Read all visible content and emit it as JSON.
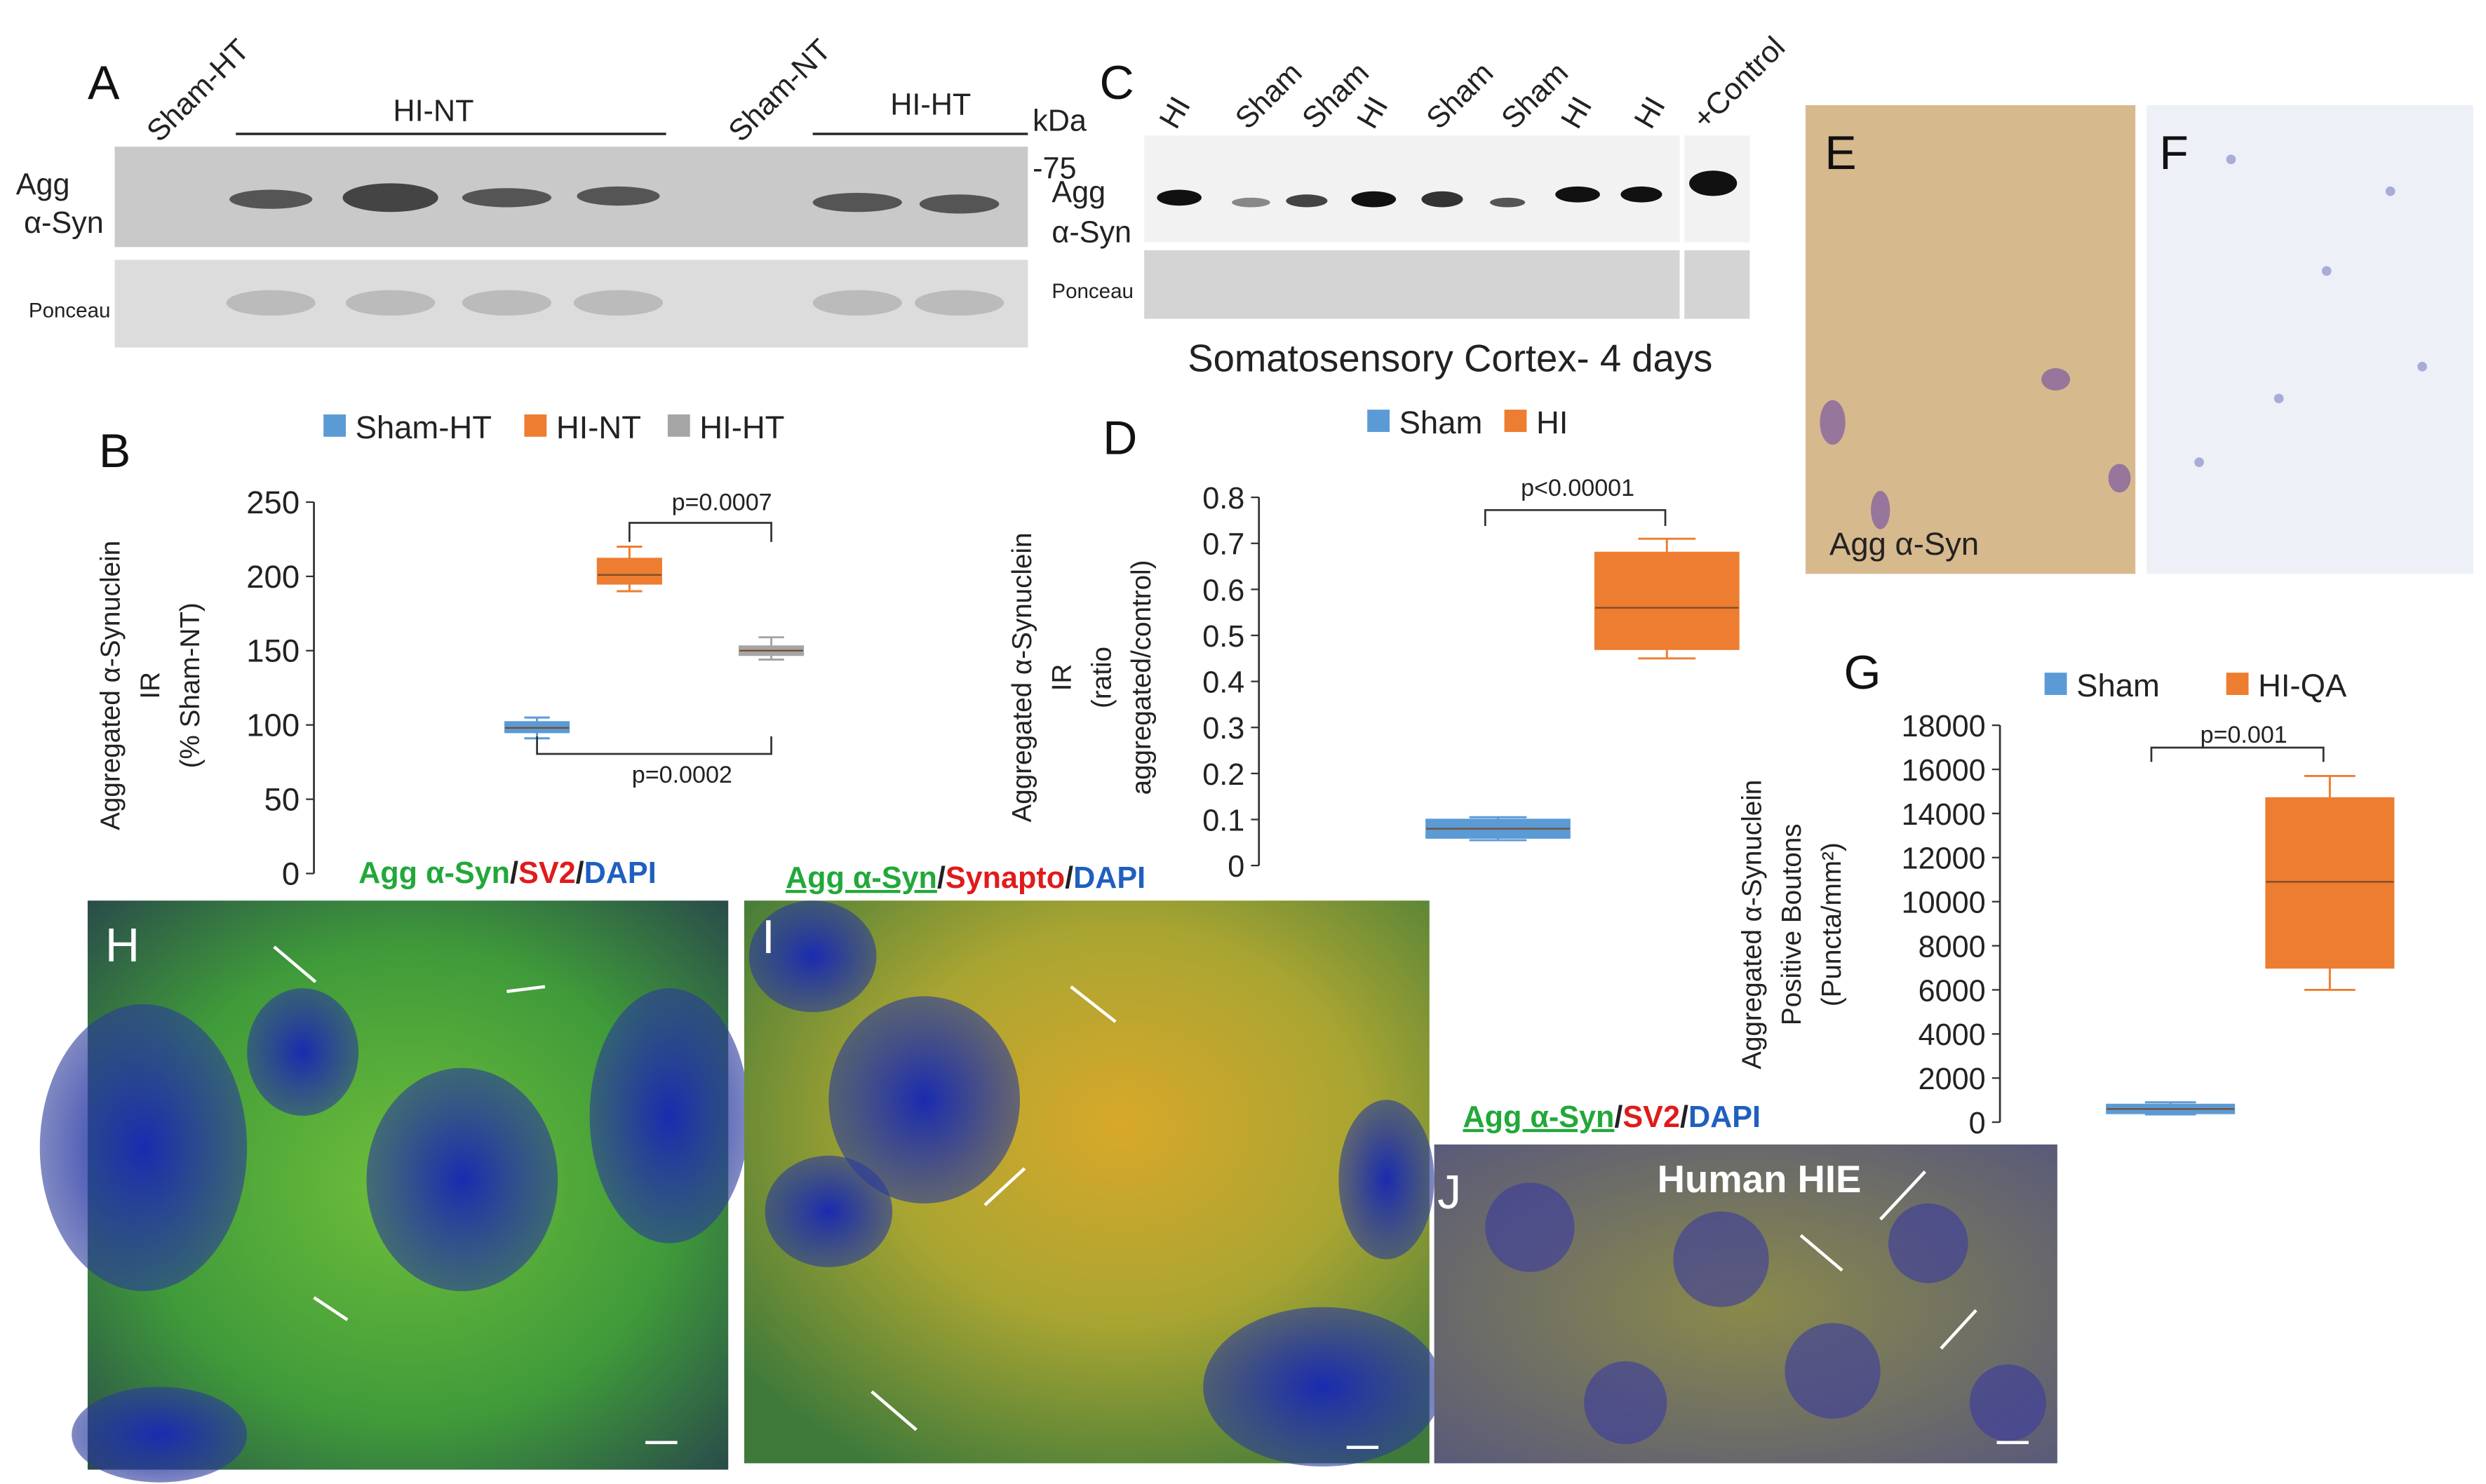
{
  "panel_letters": [
    "A",
    "B",
    "C",
    "D",
    "E",
    "F",
    "G",
    "H",
    "I",
    "J"
  ],
  "blot_a": {
    "lanes": [
      "Sham-HT",
      "Sham-NT"
    ],
    "groups": [
      "HI-NT",
      "HI-HT"
    ],
    "kda": "kDa",
    "marker": "-75",
    "row_label": [
      "Agg",
      "α-Syn"
    ],
    "loading": "Ponceau"
  },
  "blot_c": {
    "lanes": [
      "HI",
      "Sham",
      "Sham",
      "HI",
      "Sham",
      "Sham",
      "HI",
      "HI",
      "+Control"
    ],
    "row_label": [
      "Agg",
      "α-Syn"
    ],
    "loading": "Ponceau"
  },
  "panel_e": {
    "label": "Agg α-Syn"
  },
  "panel_h": {
    "stain": [
      "Agg α-Syn",
      "/",
      "SV2",
      "/",
      "DAPI"
    ]
  },
  "panel_i": {
    "stain": [
      "Agg α-Syn",
      "/",
      "Synapto",
      "/",
      "DAPI"
    ]
  },
  "panel_j": {
    "stain": [
      "Agg α-Syn",
      "/",
      "SV2",
      "/",
      "DAPI"
    ],
    "caption": "Human HIE"
  },
  "chart_data": [
    {
      "type": "box",
      "ylabel": [
        "Aggregated α-Synuclein",
        "IR",
        "(% Sham-NT)"
      ],
      "ylim": [
        0,
        250
      ],
      "yticks": [
        0,
        50,
        100,
        150,
        200,
        250
      ],
      "series": [
        {
          "name": "Sham-HT",
          "color": "#5b9bd5",
          "min": 91,
          "q1": 95,
          "median": 98,
          "q3": 102,
          "max": 105
        },
        {
          "name": "HI-NT",
          "color": "#ed7d31",
          "min": 190,
          "q1": 195,
          "median": 201,
          "q3": 212,
          "max": 220
        },
        {
          "name": "HI-HT",
          "color": "#a5a5a5",
          "min": 144,
          "q1": 147,
          "median": 150,
          "q3": 153,
          "max": 159
        }
      ],
      "annotations": [
        "p=0.0007",
        "p=0.0002"
      ]
    },
    {
      "type": "box",
      "title": "Somatosensory Cortex- 4 days",
      "ylabel": [
        "Aggregated α-Synuclein",
        "IR",
        "(ratio",
        "aggregated/control)"
      ],
      "ylim": [
        0,
        0.8
      ],
      "yticks": [
        0,
        0.1,
        0.2,
        0.3,
        0.4,
        0.5,
        0.6,
        0.7,
        0.8
      ],
      "series": [
        {
          "name": "Sham",
          "color": "#5b9bd5",
          "min": 0.055,
          "q1": 0.06,
          "median": 0.08,
          "q3": 0.1,
          "max": 0.105
        },
        {
          "name": "HI",
          "color": "#ed7d31",
          "min": 0.45,
          "q1": 0.47,
          "median": 0.56,
          "q3": 0.68,
          "max": 0.71
        }
      ],
      "annotations": [
        "p<0.00001"
      ]
    },
    {
      "type": "box",
      "ylabel": [
        "Aggregated α-Synuclein",
        "Positive Boutons",
        "(Puncta/mm²)"
      ],
      "ylim": [
        0,
        18000
      ],
      "yticks": [
        0,
        2000,
        4000,
        6000,
        8000,
        10000,
        12000,
        14000,
        16000,
        18000
      ],
      "series": [
        {
          "name": "Sham",
          "color": "#5b9bd5",
          "min": 350,
          "q1": 400,
          "median": 600,
          "q3": 800,
          "max": 900
        },
        {
          "name": "HI-QA",
          "color": "#ed7d31",
          "min": 6000,
          "q1": 7000,
          "median": 10900,
          "q3": 14700,
          "max": 15700
        }
      ],
      "annotations": [
        "p=0.001"
      ]
    }
  ]
}
